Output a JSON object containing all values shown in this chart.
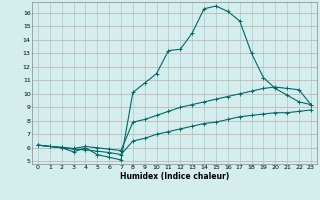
{
  "xlabel": "Humidex (Indice chaleur)",
  "bg_color": "#d4eeee",
  "grid_color_h": "#c8a8a8",
  "grid_color_v": "#a8c8c8",
  "line_color": "#006868",
  "xlim": [
    -0.5,
    23.5
  ],
  "ylim": [
    4.8,
    16.8
  ],
  "yticks": [
    5,
    6,
    7,
    8,
    9,
    10,
    11,
    12,
    13,
    14,
    15,
    16
  ],
  "xticks": [
    0,
    1,
    2,
    3,
    4,
    5,
    6,
    7,
    8,
    9,
    10,
    11,
    12,
    13,
    14,
    15,
    16,
    17,
    18,
    19,
    20,
    21,
    22,
    23
  ],
  "line1_x": [
    0,
    1,
    2,
    3,
    4,
    5,
    6,
    7,
    8,
    9,
    10,
    11,
    12,
    13,
    14,
    15,
    16,
    17,
    18,
    19,
    20,
    21,
    22,
    23
  ],
  "line1_y": [
    6.2,
    6.1,
    6.0,
    5.7,
    6.0,
    5.5,
    5.3,
    5.1,
    10.1,
    10.8,
    11.5,
    13.2,
    13.3,
    14.5,
    16.3,
    16.5,
    16.1,
    15.4,
    13.0,
    11.2,
    10.4,
    9.9,
    9.4,
    9.2
  ],
  "line2_x": [
    0,
    1,
    2,
    3,
    4,
    5,
    6,
    7,
    8,
    9,
    10,
    11,
    12,
    13,
    14,
    15,
    16,
    17,
    18,
    19,
    20,
    21,
    22,
    23
  ],
  "line2_y": [
    6.2,
    6.1,
    6.05,
    5.95,
    6.1,
    6.0,
    5.9,
    5.8,
    7.9,
    8.1,
    8.4,
    8.7,
    9.0,
    9.2,
    9.4,
    9.6,
    9.8,
    10.0,
    10.2,
    10.4,
    10.5,
    10.4,
    10.3,
    9.2
  ],
  "line3_x": [
    0,
    1,
    2,
    3,
    4,
    5,
    6,
    7,
    8,
    9,
    10,
    11,
    12,
    13,
    14,
    15,
    16,
    17,
    18,
    19,
    20,
    21,
    22,
    23
  ],
  "line3_y": [
    6.2,
    6.1,
    6.0,
    5.9,
    5.85,
    5.75,
    5.65,
    5.5,
    6.5,
    6.7,
    7.0,
    7.2,
    7.4,
    7.6,
    7.8,
    7.9,
    8.1,
    8.3,
    8.4,
    8.5,
    8.6,
    8.6,
    8.7,
    8.8
  ]
}
